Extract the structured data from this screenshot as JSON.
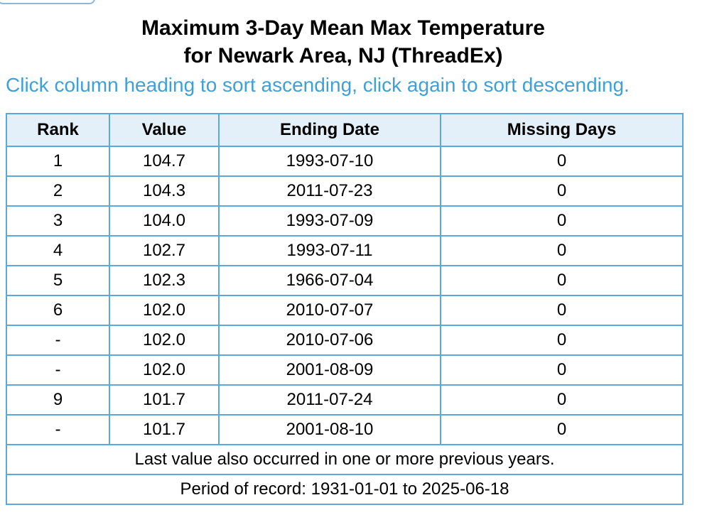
{
  "header": {
    "title_lines": [
      "Maximum 3-Day Mean Max Temperature",
      "for Newark Area, NJ (ThreadEx)"
    ],
    "subtitle": "Click column heading to sort ascending, click again to sort descending."
  },
  "table": {
    "columns": [
      "Rank",
      "Value",
      "Ending Date",
      "Missing Days"
    ],
    "rows": [
      [
        "1",
        "104.7",
        "1993-07-10",
        "0"
      ],
      [
        "2",
        "104.3",
        "2011-07-23",
        "0"
      ],
      [
        "3",
        "104.0",
        "1993-07-09",
        "0"
      ],
      [
        "4",
        "102.7",
        "1993-07-11",
        "0"
      ],
      [
        "5",
        "102.3",
        "1966-07-04",
        "0"
      ],
      [
        "6",
        "102.0",
        "2010-07-07",
        "0"
      ],
      [
        "-",
        "102.0",
        "2010-07-06",
        "0"
      ],
      [
        "-",
        "102.0",
        "2001-08-09",
        "0"
      ],
      [
        "9",
        "101.7",
        "2011-07-24",
        "0"
      ],
      [
        "-",
        "101.7",
        "2001-08-10",
        "0"
      ]
    ],
    "footnotes": [
      "Last value also occurred in one or more previous years.",
      "Period of record: 1931-01-01 to 2025-06-18"
    ]
  }
}
